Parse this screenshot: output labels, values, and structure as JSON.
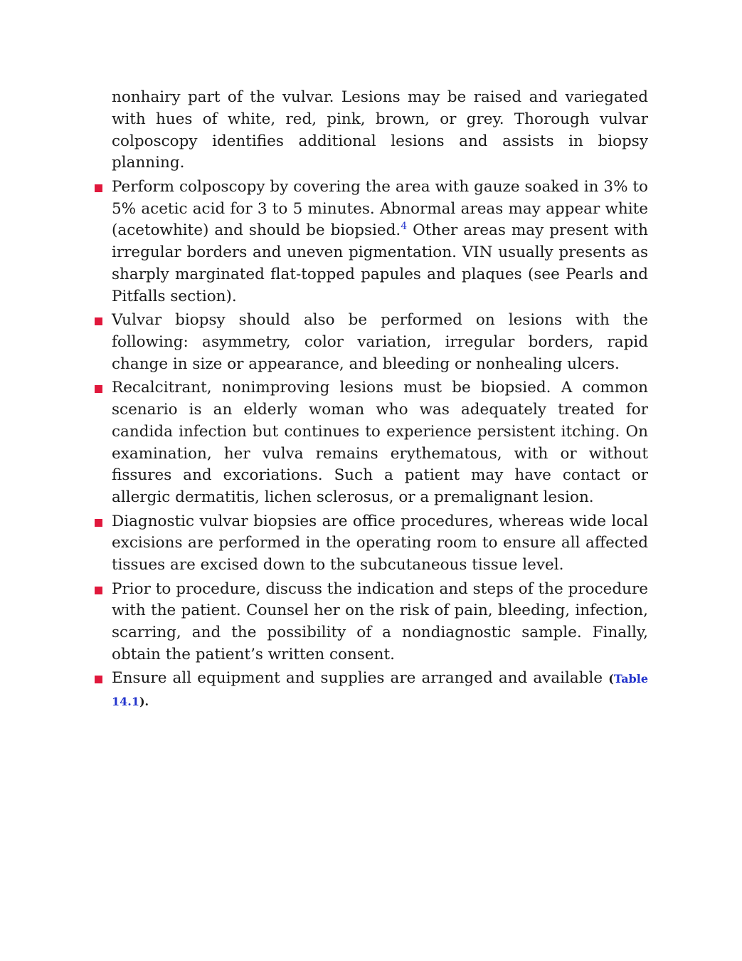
{
  "continuation": "nonhairy part of the vulvar. Lesions may be raised and variegated with hues of white, red, pink, brown, or grey. Thorough vulvar colposcopy identifies additional lesions and assists in biopsy planning.",
  "bullets": [
    [
      "Perform colposcopy by covering the area with gauze soaked in 3% to 5% acetic acid for 3 to 5 minutes. Abnormal areas may appear white (acetowhite) and should be biopsied.",
      "4",
      " Other areas may present with irregular borders and uneven pigmentation. VIN usually presents as sharply marginated flat-topped papules and plaques (see Pearls and Pitfalls section)."
    ],
    [
      "Vulvar biopsy should also be performed on lesions with the following: asymmetry, color variation, irregular borders, rapid change in size or appearance, and bleeding or nonhealing ulcers."
    ],
    [
      "Recalcitrant, nonimproving lesions must be biopsied. A common scenario is an elderly woman who was adequately treated for candida infection but continues to experience persistent itching. On examination, her vulva remains erythematous, with or without fissures and excoriations. Such a patient may have contact or allergic dermatitis, lichen sclerosus, or a premalignant lesion."
    ],
    [
      "Diagnostic vulvar biopsies are office procedures, whereas wide local excisions are performed in the operating room to ensure all affected tissues are excised down to the subcutaneous tissue level."
    ],
    [
      "Prior to procedure, discuss the indication and steps of the procedure with the patient. Counsel her on the risk of pain, bleeding, infection, scarring, and the possibility of a nondiagnostic sample. Finally, obtain the patient’s written consent."
    ],
    [
      "Ensure all equipment and supplies are arranged and available ",
      "(",
      "Table 14.1",
      ")."
    ]
  ]
}
